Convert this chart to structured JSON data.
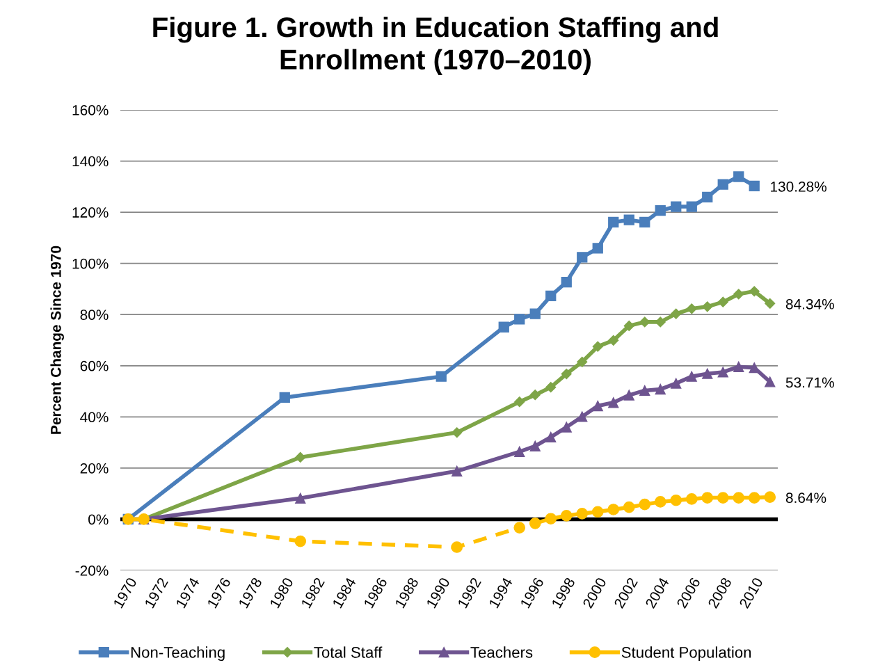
{
  "chart_data": {
    "type": "line",
    "title": "Figure 1. Growth in Education Staffing and\nEnrollment (1970–2010)",
    "ylabel": "Percent Change Since 1970",
    "categories": [
      "1970",
      null,
      "1972",
      null,
      "1974",
      null,
      "1976",
      null,
      "1978",
      null,
      "1980",
      null,
      "1982",
      null,
      "1984",
      null,
      "1986",
      null,
      "1988",
      null,
      "1990",
      null,
      "1992",
      null,
      "1994",
      null,
      "1996",
      null,
      "1998",
      null,
      "2000",
      null,
      "2002",
      null,
      "2004",
      null,
      "2006",
      null,
      "2008",
      null,
      "2010",
      null
    ],
    "ylim": [
      -20,
      160
    ],
    "yticks": [
      {
        "value": -20,
        "label": "-20%"
      },
      {
        "value": 0,
        "label": "0%"
      },
      {
        "value": 20,
        "label": "20%"
      },
      {
        "value": 40,
        "label": "40%"
      },
      {
        "value": 60,
        "label": "60%"
      },
      {
        "value": 80,
        "label": "80%"
      },
      {
        "value": 100,
        "label": "100%"
      },
      {
        "value": 120,
        "label": "120%"
      },
      {
        "value": 140,
        "label": "140%"
      },
      {
        "value": 160,
        "label": "160%"
      }
    ],
    "grid": "y",
    "legend": "bottom",
    "ref_lines": [
      {
        "axis": "y",
        "value": 0,
        "color": "#000000"
      }
    ],
    "series": [
      {
        "name": "Non-Teaching",
        "color": "#4a7ebb",
        "marker": "square",
        "line_style": "solid",
        "values": [
          0,
          null,
          null,
          null,
          null,
          null,
          null,
          null,
          null,
          null,
          47.6,
          null,
          null,
          null,
          null,
          null,
          null,
          null,
          null,
          null,
          55.8,
          null,
          null,
          null,
          75.1,
          78.2,
          80.3,
          87.3,
          92.7,
          102.4,
          105.9,
          116.1,
          117.0,
          116.1,
          120.7,
          122.2,
          122.2,
          125.9,
          130.9,
          133.9,
          130.28,
          null
        ],
        "value_labels": [
          null,
          null,
          null,
          null,
          null,
          null,
          null,
          null,
          null,
          null,
          null,
          null,
          null,
          null,
          null,
          null,
          null,
          null,
          null,
          null,
          null,
          null,
          null,
          null,
          null,
          null,
          null,
          null,
          null,
          null,
          null,
          null,
          null,
          null,
          null,
          null,
          null,
          null,
          null,
          null,
          "130.28%",
          null
        ]
      },
      {
        "name": "Total Staff",
        "color": "#7ea547",
        "marker": "diamond",
        "line_style": "solid",
        "values": [
          null,
          0,
          null,
          null,
          null,
          null,
          null,
          null,
          null,
          null,
          null,
          24.2,
          null,
          null,
          null,
          null,
          null,
          null,
          null,
          null,
          null,
          33.9,
          null,
          null,
          null,
          45.9,
          48.6,
          51.6,
          56.8,
          61.5,
          67.5,
          69.9,
          75.6,
          77.1,
          77.1,
          80.3,
          82.3,
          83.1,
          84.9,
          88.0,
          89.1,
          84.34
        ],
        "value_labels": [
          null,
          null,
          null,
          null,
          null,
          null,
          null,
          null,
          null,
          null,
          null,
          null,
          null,
          null,
          null,
          null,
          null,
          null,
          null,
          null,
          null,
          null,
          null,
          null,
          null,
          null,
          null,
          null,
          null,
          null,
          null,
          null,
          null,
          null,
          null,
          null,
          null,
          null,
          null,
          null,
          null,
          "84.34%"
        ]
      },
      {
        "name": "Teachers",
        "color": "#6e5490",
        "marker": "triangle",
        "line_style": "solid",
        "values": [
          null,
          0,
          null,
          null,
          null,
          null,
          null,
          null,
          null,
          null,
          null,
          8.2,
          null,
          null,
          null,
          null,
          null,
          null,
          null,
          null,
          null,
          18.8,
          null,
          null,
          null,
          26.4,
          28.6,
          32.1,
          36.0,
          40.1,
          44.3,
          45.6,
          48.5,
          50.3,
          50.8,
          53.1,
          55.8,
          56.9,
          57.5,
          59.6,
          59.2,
          53.71
        ],
        "value_labels": [
          null,
          null,
          null,
          null,
          null,
          null,
          null,
          null,
          null,
          null,
          null,
          null,
          null,
          null,
          null,
          null,
          null,
          null,
          null,
          null,
          null,
          null,
          null,
          null,
          null,
          null,
          null,
          null,
          null,
          null,
          null,
          null,
          null,
          null,
          null,
          null,
          null,
          null,
          null,
          null,
          null,
          "53.71%"
        ]
      },
      {
        "name": "Student Population",
        "color": "#ffc000",
        "marker": "circle",
        "line_style": "solid",
        "values": [
          null,
          null,
          null,
          null,
          null,
          null,
          null,
          null,
          null,
          null,
          null,
          null,
          null,
          null,
          null,
          null,
          null,
          null,
          null,
          null,
          null,
          null,
          null,
          null,
          null,
          null,
          -1.6,
          0.2,
          1.4,
          2.2,
          2.9,
          3.8,
          4.7,
          5.8,
          6.8,
          7.4,
          7.9,
          8.4,
          8.4,
          8.4,
          8.4,
          8.64
        ],
        "value_labels": [
          null,
          null,
          null,
          null,
          null,
          null,
          null,
          null,
          null,
          null,
          null,
          null,
          null,
          null,
          null,
          null,
          null,
          null,
          null,
          null,
          null,
          null,
          null,
          null,
          null,
          null,
          null,
          null,
          null,
          null,
          null,
          null,
          null,
          null,
          null,
          null,
          null,
          null,
          null,
          null,
          null,
          "8.64%"
        ]
      },
      {
        "color": "#ffc000",
        "marker": "circle",
        "line_style": "dashed",
        "values": [
          0,
          0,
          null,
          null,
          null,
          null,
          null,
          null,
          null,
          null,
          null,
          -8.6,
          null,
          null,
          null,
          null,
          null,
          null,
          null,
          null,
          null,
          -10.9,
          null,
          null,
          null,
          -3.3,
          null,
          null,
          null,
          null,
          null,
          null,
          null,
          null,
          null,
          null,
          null,
          null,
          null,
          null,
          null,
          null
        ]
      }
    ]
  }
}
